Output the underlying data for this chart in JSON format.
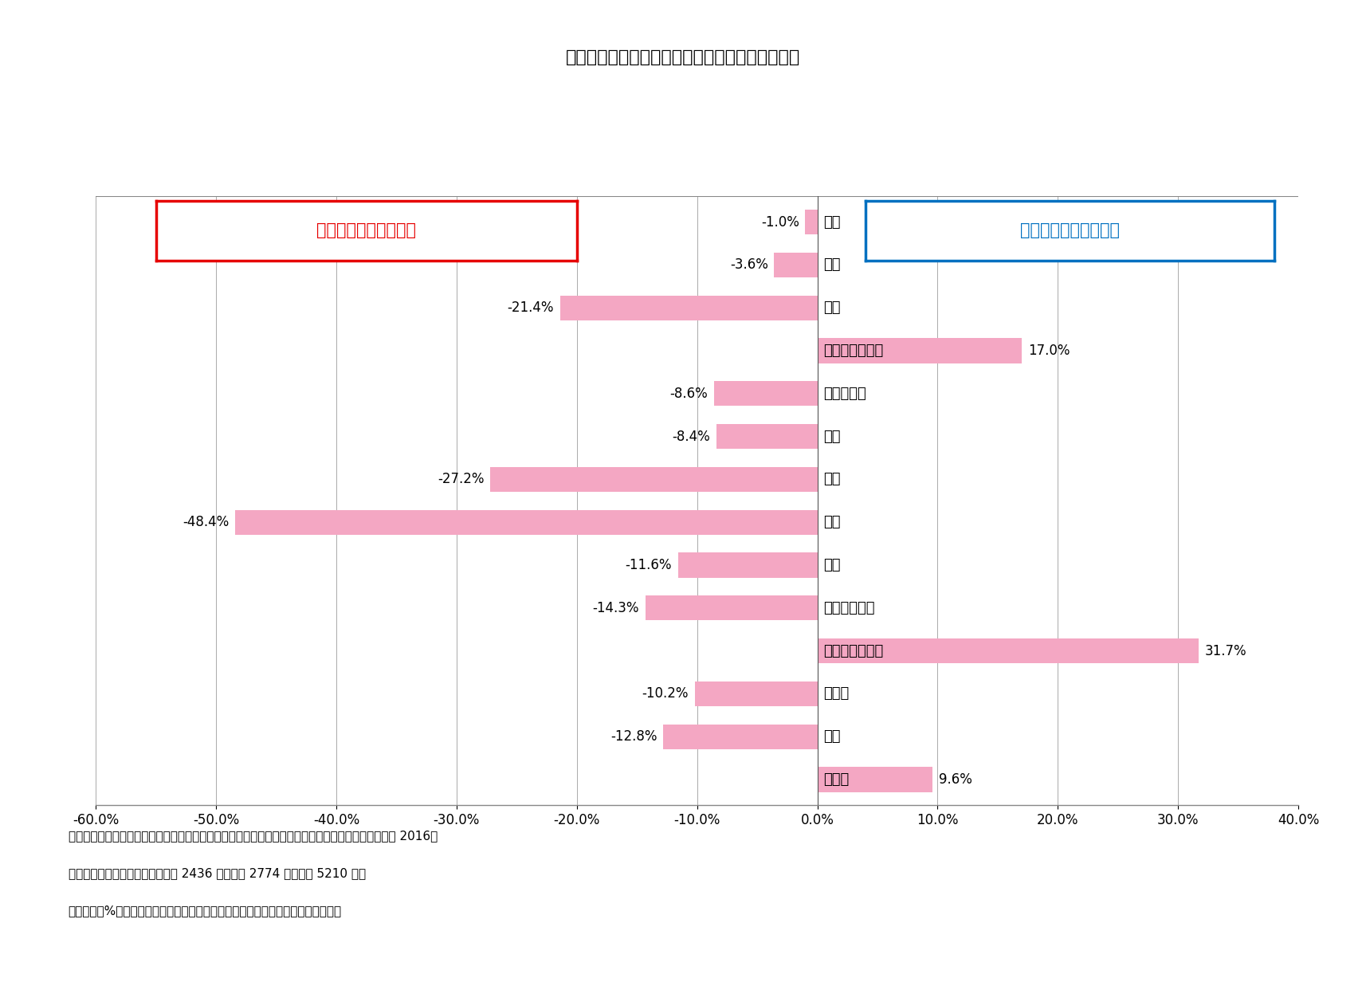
{
  "title": "》図表２》　男女の「こだわる」選択者の割合差",
  "categories": [
    "休日",
    "お酒",
    "同居",
    "婿養子（女性）",
    "子供の有無",
    "婚歴",
    "学歴",
    "年収",
    "職業",
    "結婚後の同居",
    "婿養子（男性）",
    "居住地",
    "年齢",
    "たばこ"
  ],
  "values": [
    -1.0,
    -3.6,
    -21.4,
    17.0,
    -8.6,
    -8.4,
    -27.2,
    -48.4,
    -11.6,
    -14.3,
    31.7,
    -10.2,
    -12.8,
    9.6
  ],
  "bar_color": "#f4a7c3",
  "xlim": [
    -60.0,
    40.0
  ],
  "xticks": [
    -60.0,
    -50.0,
    -40.0,
    -30.0,
    -20.0,
    -10.0,
    0.0,
    10.0,
    20.0,
    30.0,
    40.0
  ],
  "left_label": "女性のほうがこだわる",
  "right_label": "男性のほうがこだわる",
  "left_label_color": "#e60000",
  "right_label_color": "#0070c0",
  "left_box_edge_color": "#e60000",
  "right_box_edge_color": "#0070c0",
  "footnote_line1": "資料：天野馨南子・愛媛結婚支援ビッグデータ活用研究会　結婚希望のある未婚男女「こだわり分析 2016」",
  "footnote_line2": "　　　より転載（有効回答：男性 2436 人、女性 2774 人、合計 5210 人）",
  "footnote_line3": "　注：図の%は、男性のこだわると回答した割合－女性のこだわると回答した割合",
  "background_color": "#ffffff",
  "grid_color": "#aaaaaa"
}
